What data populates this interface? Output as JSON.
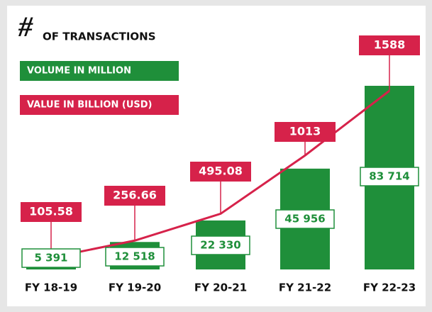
{
  "chart_data": {
    "type": "bar-line",
    "title_symbol": "#",
    "title": "OF TRANSACTIONS",
    "categories": [
      "FY 18-19",
      "FY 19-20",
      "FY 20-21",
      "FY 21-22",
      "FY 22-23"
    ],
    "series": [
      {
        "name": "VOLUME IN MILLION",
        "type": "bar",
        "color": "#1f8f3a",
        "values": [
          5391,
          12518,
          22330,
          45956,
          83714
        ],
        "value_labels": [
          "5 391",
          "12 518",
          "22 330",
          "45 956",
          "83 714"
        ]
      },
      {
        "name": "VALUE IN BILLION (USD)",
        "type": "line",
        "color": "#d6224a",
        "values": [
          105.58,
          256.66,
          495.08,
          1013,
          1588
        ]
      }
    ]
  }
}
